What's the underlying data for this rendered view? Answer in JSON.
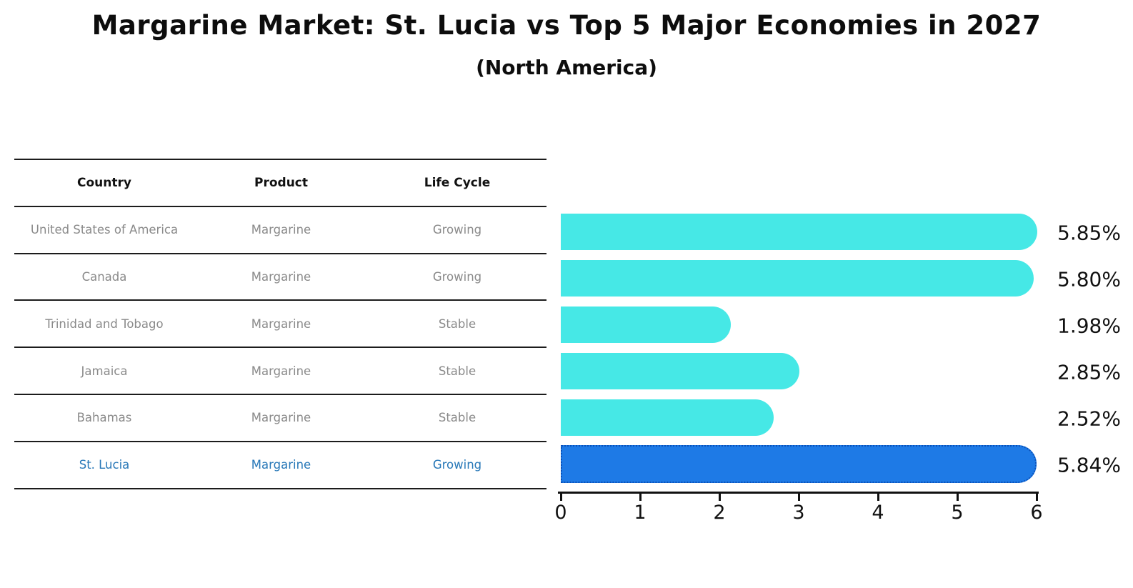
{
  "title": "Margarine Market: St. Lucia vs Top 5 Major Economies in 2027",
  "subtitle": "(North America)",
  "table": {
    "headers": [
      "Country",
      "Product",
      "Life Cycle"
    ],
    "rows": [
      {
        "country": "United States of America",
        "product": "Margarine",
        "life_cycle": "Growing",
        "highlight": false
      },
      {
        "country": "Canada",
        "product": "Margarine",
        "life_cycle": "Growing",
        "highlight": false
      },
      {
        "country": "Trinidad and Tobago",
        "product": "Margarine",
        "life_cycle": "Stable",
        "highlight": false
      },
      {
        "country": "Jamaica",
        "product": "Margarine",
        "life_cycle": "Stable",
        "highlight": false
      },
      {
        "country": "Bahamas",
        "product": "Margarine",
        "life_cycle": "Stable",
        "highlight": false
      },
      {
        "country": "St. Lucia",
        "product": "Margarine",
        "life_cycle": "Growing",
        "highlight": true
      }
    ]
  },
  "chart_data": {
    "type": "bar",
    "orientation": "horizontal",
    "title": "Margarine Market: St. Lucia vs Top 5 Major Economies in 2027",
    "subtitle": "(North America)",
    "categories": [
      "United States of America",
      "Canada",
      "Trinidad and Tobago",
      "Jamaica",
      "Bahamas",
      "St. Lucia"
    ],
    "values": [
      5.85,
      5.8,
      1.98,
      2.85,
      2.52,
      5.84
    ],
    "value_labels": [
      "5.85%",
      "5.80%",
      "1.98%",
      "2.85%",
      "2.52%",
      "5.84%"
    ],
    "highlight_index": 5,
    "xlim": [
      0,
      6
    ],
    "xticks": [
      "0",
      "1",
      "2",
      "3",
      "4",
      "5",
      "6"
    ],
    "grid": false,
    "legend": false,
    "colors": {
      "bar": "#46E8E6",
      "highlight_bar": "#1E7AE6",
      "highlight_border": "#0A50B8",
      "label_text": "#111111",
      "row_text": "#8a8a8a",
      "highlight_row_text": "#2878b8"
    }
  }
}
